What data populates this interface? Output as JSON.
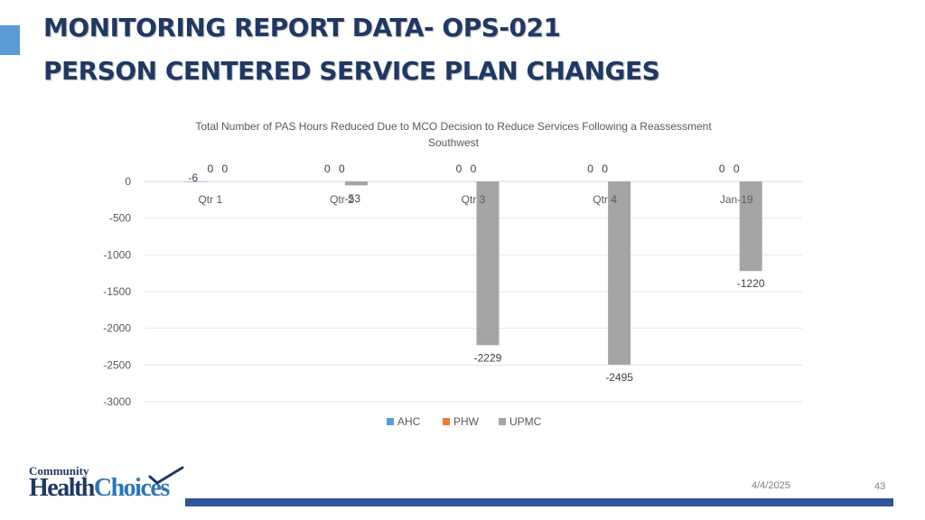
{
  "slide": {
    "title_line1": "MONITORING REPORT DATA- OPS-021",
    "title_line2": "PERSON CENTERED SERVICE PLAN CHANGES",
    "date": "4/4/2025",
    "page_number": "43",
    "logo": {
      "top_text": "Community",
      "main_text_1": "Health",
      "main_text_2": "Choices"
    },
    "colors": {
      "title": "#1f3864",
      "accent": "#5b9bd5",
      "footer_bar": "#2e5597"
    }
  },
  "chart_data": {
    "type": "bar",
    "title_line1": "Total Number of PAS Hours Reduced Due to MCO Decision to Reduce Services Following a Reassessment",
    "title_line2": "Southwest",
    "categories": [
      "Qtr 1",
      "Qtr 2",
      "Qtr 3",
      "Qtr 4",
      "Jan-19"
    ],
    "series": [
      {
        "name": "AHC",
        "color": "#5b9bd5",
        "values": [
          -6,
          0,
          0,
          0,
          0
        ]
      },
      {
        "name": "PHW",
        "color": "#ed7d31",
        "values": [
          0,
          0,
          0,
          0,
          0
        ]
      },
      {
        "name": "UPMC",
        "color": "#a5a5a5",
        "values": [
          0,
          -53,
          -2229,
          -2495,
          -1220
        ]
      }
    ],
    "ylim": [
      -3000,
      0
    ],
    "yticks": [
      0,
      -500,
      -1000,
      -1500,
      -2000,
      -2500,
      -3000
    ],
    "grid": true,
    "legend_position": "bottom"
  }
}
